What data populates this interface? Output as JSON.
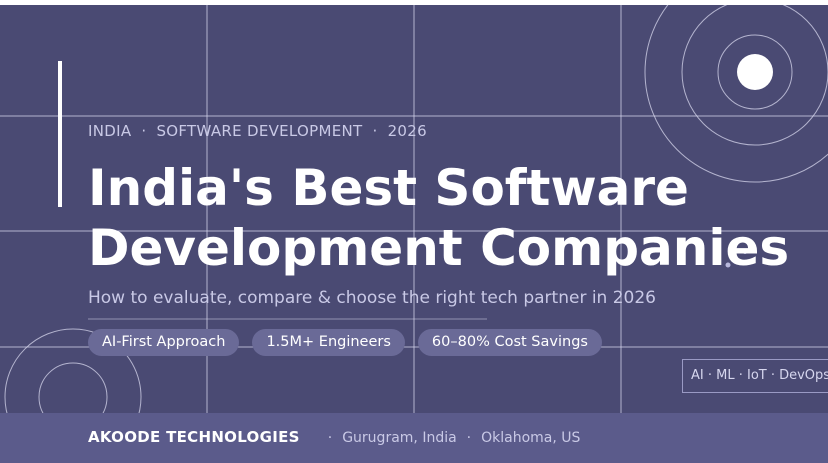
{
  "eyebrow": {
    "items": [
      "INDIA",
      "SOFTWARE DEVELOPMENT",
      "2026"
    ],
    "separator": "·"
  },
  "title": {
    "lines": [
      "India's Best Software",
      "Development Companies"
    ]
  },
  "subtitle": "How to evaluate, compare & choose the right tech partner in 2026",
  "pills": [
    "AI-First Approach",
    "1.5M+ Engineers",
    "60–80% Cost Savings"
  ],
  "tag": "AI · ML · IoT · DevOps",
  "footer": {
    "company": "AKOODE TECHNOLOGIES",
    "separator": "·",
    "locations": [
      "Gurugram, India",
      "Oklahoma, US"
    ]
  }
}
